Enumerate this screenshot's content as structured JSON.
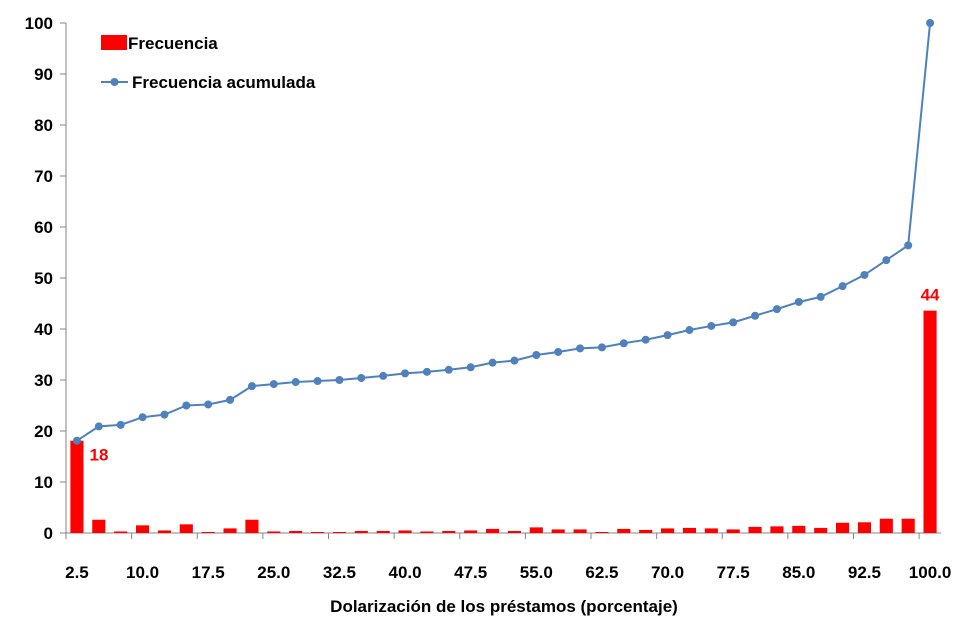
{
  "chart_data": {
    "type": "bar",
    "title": "",
    "xlabel": "Dolarización de los préstamos (porcentaje)",
    "ylabel": "",
    "ylim": [
      0,
      100
    ],
    "yticks": [
      0,
      10,
      20,
      30,
      40,
      50,
      60,
      70,
      80,
      90,
      100
    ],
    "grid": false,
    "legend_placement": "top-left",
    "categories": [
      2.5,
      5.0,
      7.5,
      10.0,
      12.5,
      15.0,
      17.5,
      20.0,
      22.5,
      25.0,
      27.5,
      30.0,
      32.5,
      35.0,
      37.5,
      40.0,
      42.5,
      45.0,
      47.5,
      50.0,
      52.5,
      55.0,
      57.5,
      60.0,
      62.5,
      65.0,
      67.5,
      70.0,
      72.5,
      75.0,
      77.5,
      80.0,
      82.5,
      85.0,
      87.5,
      90.0,
      92.5,
      95.0,
      97.5,
      100.0
    ],
    "tick_labels": [
      "2.5",
      "10.0",
      "17.5",
      "25.0",
      "32.5",
      "40.0",
      "47.5",
      "55.0",
      "62.5",
      "70.0",
      "77.5",
      "85.0",
      "92.5",
      "100.0"
    ],
    "series": [
      {
        "name": "Frecuencia",
        "kind": "bar",
        "color": "#ff0000",
        "values": [
          18.1,
          2.6,
          0.3,
          1.5,
          0.5,
          1.7,
          0.2,
          0.9,
          2.6,
          0.3,
          0.4,
          0.2,
          0.2,
          0.4,
          0.4,
          0.5,
          0.3,
          0.4,
          0.5,
          0.8,
          0.4,
          1.1,
          0.7,
          0.7,
          0.2,
          0.8,
          0.6,
          0.9,
          1.0,
          0.9,
          0.7,
          1.2,
          1.3,
          1.4,
          1.0,
          2.0,
          2.1,
          2.8,
          2.8,
          43.6
        ]
      },
      {
        "name": "Frecuencia acumulada",
        "kind": "line",
        "color": "#4f81bd",
        "values": [
          18.1,
          20.9,
          21.2,
          22.7,
          23.2,
          25.0,
          25.2,
          26.1,
          28.8,
          29.2,
          29.6,
          29.8,
          30.0,
          30.4,
          30.8,
          31.3,
          31.6,
          32.0,
          32.5,
          33.4,
          33.8,
          34.9,
          35.5,
          36.2,
          36.4,
          37.2,
          37.9,
          38.8,
          39.8,
          40.6,
          41.3,
          42.6,
          43.9,
          45.3,
          46.3,
          48.4,
          50.6,
          53.5,
          56.4,
          100.0
        ]
      }
    ],
    "data_labels": [
      {
        "category": 2.5,
        "series": "Frecuencia",
        "text": "18"
      },
      {
        "category": 100.0,
        "series": "Frecuencia",
        "text": "44"
      }
    ]
  }
}
